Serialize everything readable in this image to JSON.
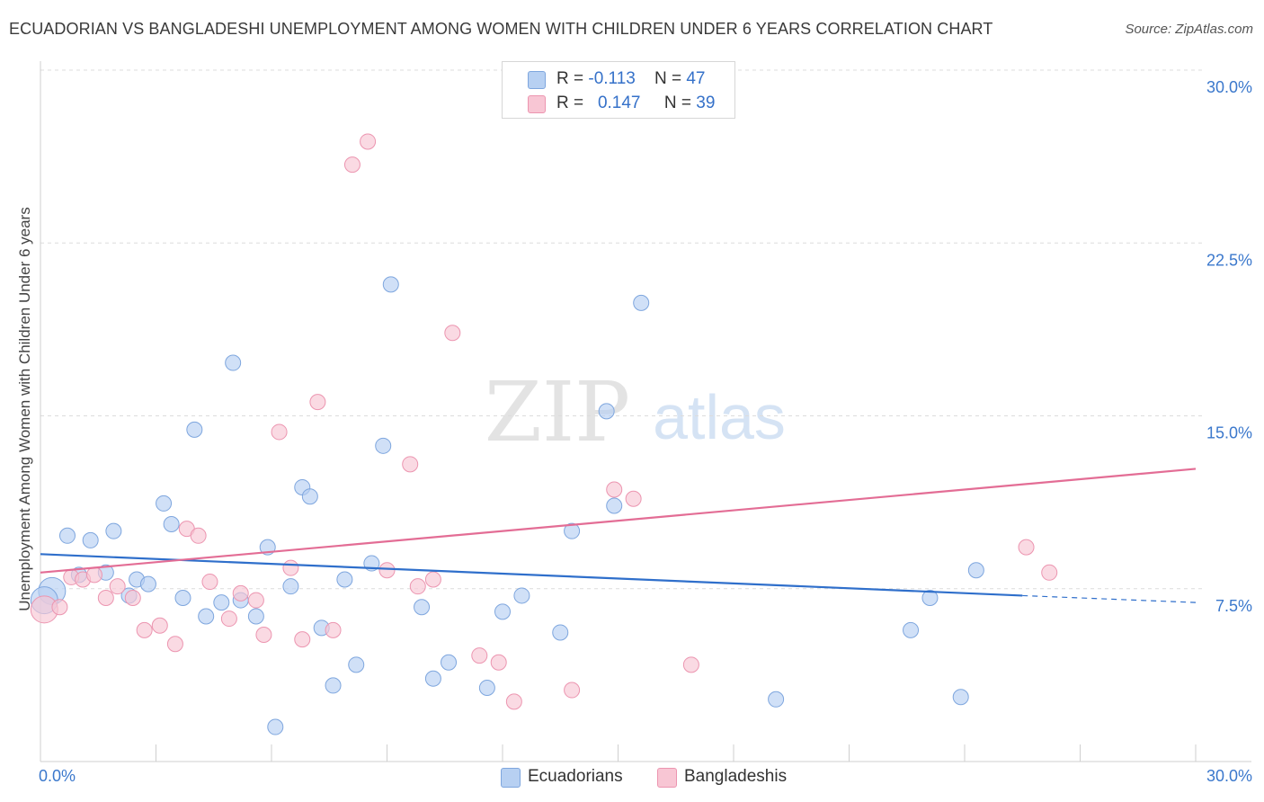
{
  "title": "ECUADORIAN VS BANGLADESHI UNEMPLOYMENT AMONG WOMEN WITH CHILDREN UNDER 6 YEARS CORRELATION CHART",
  "source": "Source: ZipAtlas.com",
  "watermark": {
    "zip": "ZIP",
    "atlas": "atlas"
  },
  "legend": {
    "rows": [
      {
        "r_label": "R = ",
        "r_value": "-0.113",
        "n_label": "N = ",
        "n_value": "47"
      },
      {
        "r_label": "R = ",
        "r_value": "0.147",
        "n_label": "N = ",
        "n_value": "39"
      }
    ]
  },
  "bottom_legend": [
    "Ecuadorians",
    "Bangladeshis"
  ],
  "colors": {
    "blue_fill": "#b7d0f2",
    "blue_stroke": "#7ea6de",
    "blue_line": "#2f6fcb",
    "pink_fill": "#f8c6d4",
    "pink_stroke": "#ec95b0",
    "pink_line": "#e36d95",
    "tick_text": "#3b78cc",
    "grid": "#dcdcdc"
  },
  "chart_data": {
    "type": "scatter",
    "title": "ECUADORIAN VS BANGLADESHI UNEMPLOYMENT AMONG WOMEN WITH CHILDREN UNDER 6 YEARS CORRELATION CHART",
    "xlabel": "",
    "ylabel": "Unemployment Among Women with Children Under 6 years",
    "xlim": [
      0,
      30
    ],
    "ylim": [
      0,
      30
    ],
    "x_tick_labels": [
      "0.0%",
      "30.0%"
    ],
    "y_ticks": [
      7.5,
      15.0,
      22.5,
      30.0
    ],
    "y_tick_labels": [
      "7.5%",
      "15.0%",
      "22.5%",
      "30.0%"
    ],
    "grid": "horizontal dashed",
    "legend_position": "top-center",
    "series": [
      {
        "name": "Ecuadorians",
        "color": "#b7d0f2",
        "r": -0.113,
        "n": 47,
        "trend": {
          "x": [
            0,
            25.5
          ],
          "y": [
            9.0,
            7.2
          ],
          "dashed_to": [
            30,
            6.9
          ]
        },
        "points": [
          [
            0.3,
            7.4,
            "L"
          ],
          [
            0.1,
            7.0,
            "L"
          ],
          [
            0.7,
            9.8
          ],
          [
            1.0,
            8.1
          ],
          [
            1.3,
            9.6
          ],
          [
            1.7,
            8.2
          ],
          [
            1.9,
            10.0
          ],
          [
            2.3,
            7.2
          ],
          [
            2.5,
            7.9
          ],
          [
            2.8,
            7.7
          ],
          [
            3.2,
            11.2
          ],
          [
            3.4,
            10.3
          ],
          [
            3.7,
            7.1
          ],
          [
            4.0,
            14.4
          ],
          [
            4.3,
            6.3
          ],
          [
            4.7,
            6.9
          ],
          [
            5.0,
            17.3
          ],
          [
            5.2,
            7.0
          ],
          [
            5.6,
            6.3
          ],
          [
            5.9,
            9.3
          ],
          [
            6.1,
            1.5
          ],
          [
            6.5,
            7.6
          ],
          [
            6.8,
            11.9
          ],
          [
            7.0,
            11.5
          ],
          [
            7.3,
            5.8
          ],
          [
            7.6,
            3.3
          ],
          [
            7.9,
            7.9
          ],
          [
            8.2,
            4.2
          ],
          [
            8.6,
            8.6
          ],
          [
            8.9,
            13.7
          ],
          [
            9.1,
            20.7
          ],
          [
            9.9,
            6.7
          ],
          [
            10.2,
            3.6
          ],
          [
            10.6,
            4.3
          ],
          [
            11.6,
            3.2
          ],
          [
            12.0,
            6.5
          ],
          [
            12.5,
            7.2
          ],
          [
            13.5,
            5.6
          ],
          [
            13.8,
            10.0
          ],
          [
            14.7,
            15.2
          ],
          [
            14.9,
            11.1
          ],
          [
            15.6,
            19.9
          ],
          [
            19.1,
            2.7
          ],
          [
            22.6,
            5.7
          ],
          [
            23.1,
            7.1
          ],
          [
            23.9,
            2.8
          ],
          [
            24.3,
            8.3
          ]
        ]
      },
      {
        "name": "Bangladeshis",
        "color": "#f8c6d4",
        "r": 0.147,
        "n": 39,
        "trend": {
          "x": [
            0,
            30
          ],
          "y": [
            8.2,
            12.7
          ]
        },
        "points": [
          [
            0.1,
            6.6,
            "L"
          ],
          [
            0.5,
            6.7
          ],
          [
            0.8,
            8.0
          ],
          [
            1.1,
            7.9
          ],
          [
            1.4,
            8.1
          ],
          [
            1.7,
            7.1
          ],
          [
            2.0,
            7.6
          ],
          [
            2.4,
            7.1
          ],
          [
            2.7,
            5.7
          ],
          [
            3.1,
            5.9
          ],
          [
            3.5,
            5.1
          ],
          [
            3.8,
            10.1
          ],
          [
            4.1,
            9.8
          ],
          [
            4.4,
            7.8
          ],
          [
            4.9,
            6.2
          ],
          [
            5.2,
            7.3
          ],
          [
            5.6,
            7.0
          ],
          [
            5.8,
            5.5
          ],
          [
            6.2,
            14.3
          ],
          [
            6.5,
            8.4
          ],
          [
            6.8,
            5.3
          ],
          [
            7.2,
            15.6
          ],
          [
            7.6,
            5.7
          ],
          [
            8.1,
            25.9
          ],
          [
            8.5,
            26.9
          ],
          [
            9.0,
            8.3
          ],
          [
            9.6,
            12.9
          ],
          [
            9.8,
            7.6
          ],
          [
            10.2,
            7.9
          ],
          [
            10.7,
            18.6
          ],
          [
            11.4,
            4.6
          ],
          [
            11.9,
            4.3
          ],
          [
            12.3,
            2.6
          ],
          [
            13.8,
            3.1
          ],
          [
            14.9,
            11.8
          ],
          [
            15.4,
            11.4
          ],
          [
            16.9,
            4.2
          ],
          [
            25.6,
            9.3
          ],
          [
            26.2,
            8.2
          ]
        ]
      }
    ]
  }
}
